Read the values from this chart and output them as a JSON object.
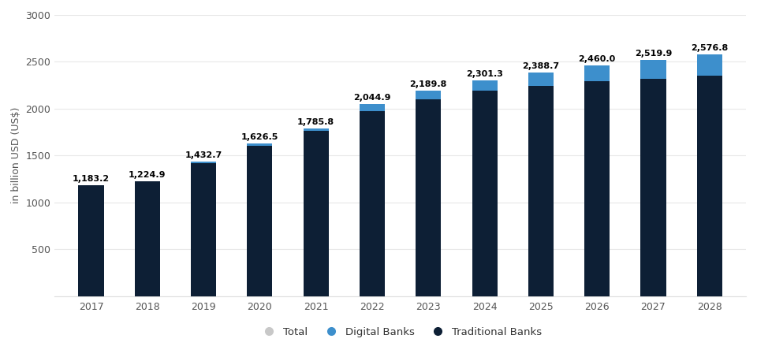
{
  "years": [
    2017,
    2018,
    2019,
    2020,
    2021,
    2022,
    2023,
    2024,
    2025,
    2026,
    2027,
    2028
  ],
  "totals": [
    1183.2,
    1224.9,
    1432.7,
    1626.5,
    1785.8,
    2044.9,
    2189.8,
    2301.3,
    2388.7,
    2460.0,
    2519.9,
    2576.8
  ],
  "traditional": [
    1183.2,
    1224.9,
    1420.0,
    1605.0,
    1762.0,
    1970.0,
    2095.0,
    2190.0,
    2245.0,
    2290.0,
    2320.0,
    2355.0
  ],
  "digital": [
    0.0,
    0.0,
    12.7,
    21.5,
    23.8,
    74.9,
    94.8,
    111.3,
    143.7,
    170.0,
    199.9,
    221.8
  ],
  "color_traditional": "#0d1f35",
  "color_digital": "#3d8fcc",
  "color_total_legend": "#c8c8c8",
  "bar_width": 0.45,
  "ylim": [
    0,
    3000
  ],
  "yticks": [
    0,
    500,
    1000,
    1500,
    2000,
    2500,
    3000
  ],
  "ylabel": "in billion USD (US$)",
  "background_color": "#ffffff",
  "grid_color": "#e8e8e8",
  "label_fontsize": 8.0,
  "axis_fontsize": 9,
  "legend_labels": [
    "Total",
    "Digital Banks",
    "Traditional Banks"
  ]
}
